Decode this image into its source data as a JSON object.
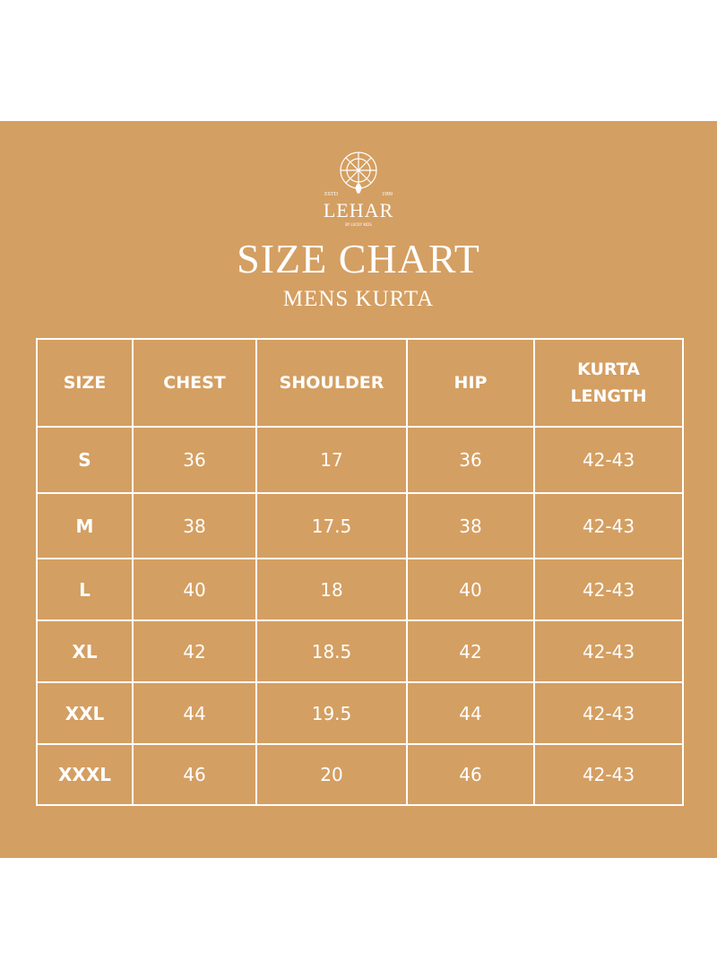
{
  "logo": {
    "estd": "ESTD",
    "year": "1999",
    "brand": "LEHAR",
    "tagline": "BY LUCKY KIDS"
  },
  "header": {
    "title": "SIZE CHART",
    "subtitle": "MENS KURTA"
  },
  "table": {
    "columns": [
      "SIZE",
      "CHEST",
      "SHOULDER",
      "HIP",
      "KURTA LENGTH"
    ],
    "rows": [
      [
        "S",
        "36",
        "17",
        "36",
        "42-43"
      ],
      [
        "M",
        "38",
        "17.5",
        "38",
        "42-43"
      ],
      [
        "L",
        "40",
        "18",
        "40",
        "42-43"
      ],
      [
        "XL",
        "42",
        "18.5",
        "42",
        "42-43"
      ],
      [
        "XXL",
        "44",
        "19.5",
        "44",
        "42-43"
      ],
      [
        "XXXL",
        "46",
        "20",
        "46",
        "42-43"
      ]
    ]
  }
}
